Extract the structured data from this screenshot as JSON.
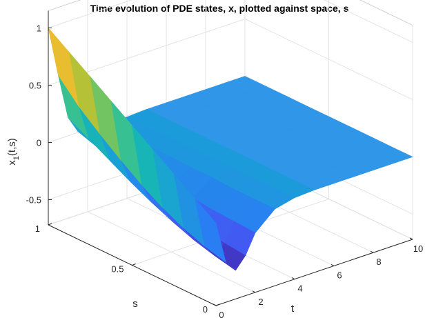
{
  "chart_data": {
    "type": "surface",
    "title": "Time evolution of PDE states, x, plotted against space, s",
    "xlabel": "t",
    "ylabel": "s",
    "zlabel_main": "x",
    "zlabel_sub": "1",
    "zlabel_tail": "(t,s)",
    "t_ticks": [
      "0",
      "2",
      "4",
      "6",
      "8",
      "10"
    ],
    "s_ticks": [
      "0",
      "0.5",
      "1"
    ],
    "z_ticks": [
      "-0.5",
      "0",
      "0.5",
      "1"
    ],
    "t_values": [
      0,
      0.5,
      1,
      1.5,
      2,
      3,
      4,
      5,
      6,
      7,
      8,
      9,
      10
    ],
    "s_values": [
      0,
      0.125,
      0.25,
      0.375,
      0.5,
      0.625,
      0.75,
      0.875,
      1
    ],
    "x_values": [
      [
        0,
        0.125,
        0.25,
        0.375,
        0.5,
        0.625,
        0.75,
        0.875,
        1
      ],
      [
        -0.37,
        -0.32,
        -0.25,
        -0.16,
        -0.05,
        0.08,
        0.22,
        0.37,
        0.56
      ],
      [
        -0.47,
        -0.43,
        -0.38,
        -0.31,
        -0.23,
        -0.14,
        -0.04,
        0.06,
        0.16
      ],
      [
        -0.37,
        -0.35,
        -0.32,
        -0.28,
        -0.23,
        -0.17,
        -0.11,
        -0.05,
        0.01
      ],
      [
        -0.2,
        -0.19,
        -0.18,
        -0.16,
        -0.14,
        -0.11,
        -0.08,
        -0.05,
        -0.02
      ],
      [
        -0.05,
        -0.05,
        -0.05,
        -0.04,
        -0.04,
        -0.03,
        -0.03,
        -0.02,
        -0.02
      ],
      [
        -0.01,
        -0.01,
        -0.01,
        -0.01,
        -0.01,
        -0.01,
        -0.01,
        -0.01,
        -0.01
      ],
      [
        0,
        0,
        0,
        0,
        0,
        0,
        0,
        0,
        0
      ],
      [
        0,
        0,
        0,
        0,
        0,
        0,
        0,
        0,
        0
      ],
      [
        0,
        0,
        0,
        0,
        0,
        0,
        0,
        0,
        0
      ],
      [
        0,
        0,
        0,
        0,
        0,
        0,
        0,
        0,
        0
      ],
      [
        0,
        0,
        0,
        0,
        0,
        0,
        0,
        0,
        0
      ],
      [
        0,
        0,
        0,
        0,
        0,
        0,
        0,
        0,
        0
      ]
    ],
    "xlim": [
      0,
      10
    ],
    "ylim": [
      0,
      1
    ],
    "zlim": [
      -0.5,
      1
    ],
    "grid": true,
    "colormap": "parula",
    "colormap_stops": [
      "#3e26a8",
      "#4652f0",
      "#2a7ef3",
      "#1aa0d6",
      "#17b8b2",
      "#49c47f",
      "#a4c53c",
      "#e4b82e",
      "#f9d834",
      "#f9fb0e"
    ],
    "flat_color": "#2f96e8"
  }
}
